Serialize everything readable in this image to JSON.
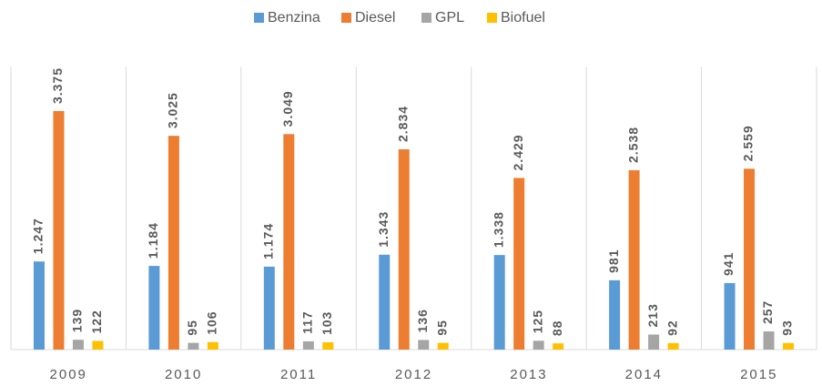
{
  "chart_data": {
    "type": "bar",
    "categories": [
      "2009",
      "2010",
      "2011",
      "2012",
      "2013",
      "2014",
      "2015"
    ],
    "series": [
      {
        "name": "Benzina",
        "color": "#5b9bd5",
        "values": [
          1247,
          1184,
          1174,
          1343,
          1338,
          981,
          941
        ],
        "value_labels": [
          "1.247",
          "1.184",
          "1.174",
          "1.343",
          "1.338",
          "981",
          "941"
        ]
      },
      {
        "name": "Diesel",
        "color": "#ed7d31",
        "values": [
          3375,
          3025,
          3049,
          2834,
          2429,
          2538,
          2559
        ],
        "value_labels": [
          "3.375",
          "3.025",
          "3.049",
          "2.834",
          "2.429",
          "2.538",
          "2.559"
        ]
      },
      {
        "name": "GPL",
        "color": "#a5a5a5",
        "values": [
          139,
          95,
          117,
          136,
          125,
          213,
          257
        ],
        "value_labels": [
          "139",
          "95",
          "117",
          "136",
          "125",
          "213",
          "257"
        ]
      },
      {
        "name": "Biofuel",
        "color": "#ffc000",
        "values": [
          122,
          106,
          103,
          95,
          88,
          92,
          93
        ],
        "value_labels": [
          "122",
          "106",
          "103",
          "95",
          "88",
          "92",
          "93"
        ]
      }
    ],
    "ylim": [
      0,
      4000
    ],
    "legend": "top"
  }
}
